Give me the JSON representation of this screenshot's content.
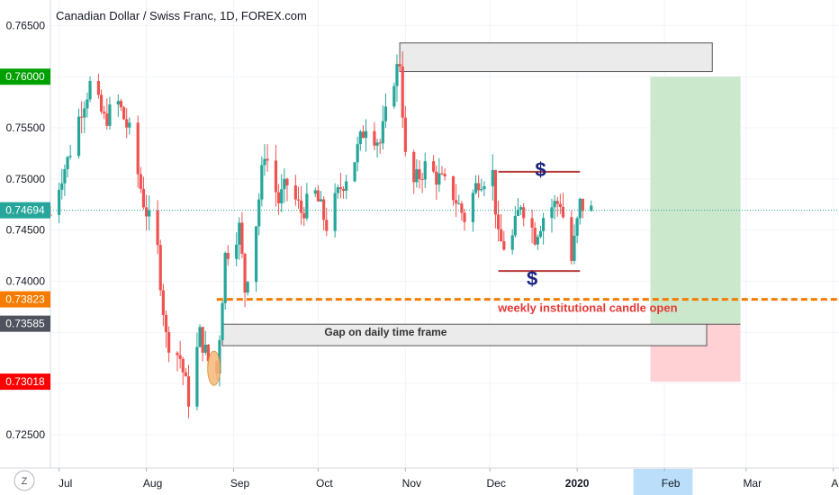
{
  "chart_data": {
    "type": "candlestick",
    "title": "Canadian Dollar / Swiss Franc, 1D, FOREX.com",
    "ylim": [
      0.7235,
      0.7675
    ],
    "x_range": [
      "2019-06-26",
      "2020-04-03"
    ],
    "grid": true,
    "colors": {
      "up": "#26a69a",
      "down": "#ef5350",
      "last_line": "#26a69a",
      "orange": "#f57c00",
      "target": "#c8e6c9",
      "stop": "#ffcdd2"
    },
    "y_ticks": [
      "0.76500",
      "0.75500",
      "0.75000",
      "0.74500",
      "0.74000",
      "0.72500"
    ],
    "x_ticks": [
      {
        "label": "Jul",
        "date": "2019-07-01"
      },
      {
        "label": "Aug",
        "date": "2019-08-01"
      },
      {
        "label": "Sep",
        "date": "2019-09-01"
      },
      {
        "label": "Oct",
        "date": "2019-10-01"
      },
      {
        "label": "Nov",
        "date": "2019-11-01"
      },
      {
        "label": "Dec",
        "date": "2019-12-01"
      },
      {
        "label": "2020",
        "date": "2020-01-01"
      },
      {
        "label": "Feb",
        "date": "2020-02-01"
      },
      {
        "label": "Mar",
        "date": "2020-03-01"
      },
      {
        "label": "Apr",
        "date": "2020-04-01"
      }
    ],
    "price_badges": [
      {
        "label": "0.76000",
        "value": 0.76,
        "color": "#00a000"
      },
      {
        "label": "0.74694",
        "value": 0.74694,
        "color": "#26a69a"
      },
      {
        "label": "0.73823",
        "value": 0.73823,
        "color": "#f57c00"
      },
      {
        "label": "0.73585",
        "value": 0.73585,
        "color": "#50535e"
      },
      {
        "label": "0.73018",
        "value": 0.73018,
        "color": "#ff0000"
      }
    ],
    "series_points": [
      [
        "2019-06-28",
        0.7465
      ],
      [
        "2019-07-02",
        0.7505
      ],
      [
        "2019-07-04",
        0.7518
      ],
      [
        "2019-07-09",
        0.757
      ],
      [
        "2019-07-12",
        0.7592
      ],
      [
        "2019-07-17",
        0.7558
      ],
      [
        "2019-07-22",
        0.7574
      ],
      [
        "2019-07-26",
        0.7545
      ],
      [
        "2019-07-31",
        0.7478
      ],
      [
        "2019-08-05",
        0.743
      ],
      [
        "2019-08-08",
        0.7345
      ],
      [
        "2019-08-13",
        0.7325
      ],
      [
        "2019-08-16",
        0.7285
      ],
      [
        "2019-08-20",
        0.7348
      ],
      [
        "2019-08-23",
        0.7322
      ],
      [
        "2019-08-26",
        0.731
      ],
      [
        "2019-08-29",
        0.7425
      ],
      [
        "2019-09-03",
        0.7452
      ],
      [
        "2019-09-05",
        0.7392
      ],
      [
        "2019-09-09",
        0.7458
      ],
      [
        "2019-09-12",
        0.7528
      ],
      [
        "2019-09-17",
        0.7478
      ],
      [
        "2019-09-20",
        0.7495
      ],
      [
        "2019-09-25",
        0.7468
      ],
      [
        "2019-09-30",
        0.7485
      ],
      [
        "2019-10-04",
        0.7455
      ],
      [
        "2019-10-09",
        0.7492
      ],
      [
        "2019-10-14",
        0.752
      ],
      [
        "2019-10-18",
        0.7555
      ],
      [
        "2019-10-23",
        0.7535
      ],
      [
        "2019-10-28",
        0.76
      ],
      [
        "2019-10-30",
        0.7615
      ],
      [
        "2019-11-01",
        0.752
      ],
      [
        "2019-11-04",
        0.7495
      ],
      [
        "2019-11-08",
        0.7512
      ],
      [
        "2019-11-13",
        0.75
      ],
      [
        "2019-11-18",
        0.7485
      ],
      [
        "2019-11-22",
        0.7462
      ],
      [
        "2019-11-27",
        0.75
      ],
      [
        "2019-12-02",
        0.7505
      ],
      [
        "2019-12-04",
        0.744
      ],
      [
        "2019-12-08",
        0.743
      ],
      [
        "2019-12-12",
        0.7478
      ],
      [
        "2019-12-17",
        0.7445
      ],
      [
        "2019-12-21",
        0.747
      ],
      [
        "2019-12-26",
        0.7478
      ],
      [
        "2019-12-30",
        0.742
      ],
      [
        "2020-01-02",
        0.7475
      ],
      [
        "2020-01-06",
        0.7469
      ]
    ],
    "annotations": {
      "weekly_open_label": "weekly institutional candle open",
      "gap_label": "Gap on daily time frame",
      "dollar_label": "$"
    }
  },
  "footer": {
    "z_label": "Z"
  }
}
